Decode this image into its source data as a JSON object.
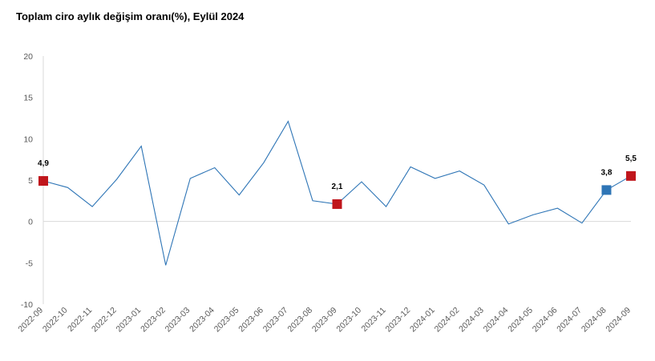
{
  "chart_data": {
    "type": "line",
    "title": "Toplam ciro aylık değişim oranı(%), Eylül 2024",
    "xlabel": "",
    "ylabel": "",
    "ylim": [
      -10,
      20
    ],
    "yticks": [
      "20",
      "15",
      "10",
      "5",
      "0",
      "-5",
      "-10"
    ],
    "ytick_values": [
      20,
      15,
      10,
      5,
      0,
      -5,
      -10
    ],
    "categories": [
      "2022-09",
      "2022-10",
      "2022-11",
      "2022-12",
      "2023-01",
      "2023-02",
      "2023-03",
      "2023-04",
      "2023-05",
      "2023-06",
      "2023-07",
      "2023-08",
      "2023-09",
      "2023-10",
      "2023-11",
      "2023-12",
      "2024-01",
      "2024-02",
      "2024-03",
      "2024-04",
      "2024-05",
      "2024-06",
      "2024-07",
      "2024-08",
      "2024-09"
    ],
    "series": [
      {
        "values": [
          4.9,
          4.1,
          1.8,
          5.1,
          9.1,
          -5.3,
          5.2,
          6.5,
          3.2,
          7.1,
          12.1,
          2.5,
          2.1,
          4.8,
          1.8,
          6.6,
          5.2,
          6.1,
          4.4,
          -0.3,
          0.8,
          1.6,
          -0.2,
          3.8,
          5.5
        ],
        "color": "#2e75b6"
      }
    ],
    "markers": [
      {
        "index": 0,
        "label": "4,9",
        "color": "#c0161c"
      },
      {
        "index": 12,
        "label": "2,1",
        "color": "#c0161c"
      },
      {
        "index": 23,
        "label": "3,8",
        "color": "#2e75b6"
      },
      {
        "index": 24,
        "label": "5,5",
        "color": "#c0161c"
      }
    ],
    "grid": false
  }
}
